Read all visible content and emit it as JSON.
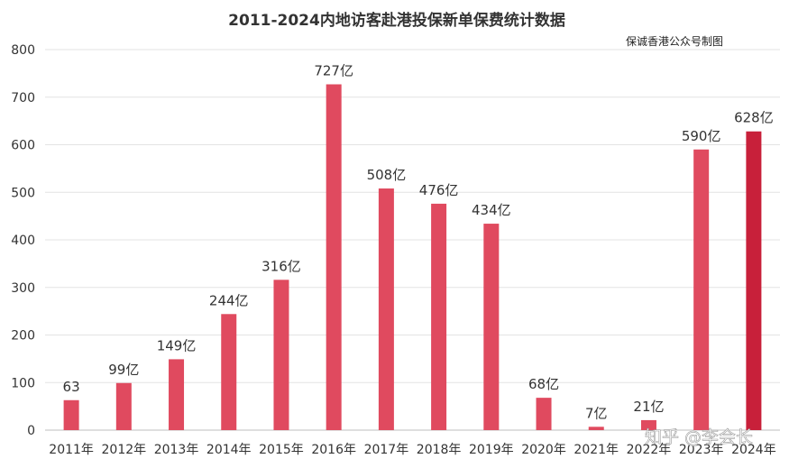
{
  "watermark": "知乎 @李会长",
  "chart_data": {
    "type": "bar",
    "title": "2011-2024内地访客赴港投保新单保费统计数据",
    "source_note": "保诚香港公众号制图",
    "xlabel": "",
    "ylabel": "",
    "ylim": [
      0,
      800
    ],
    "yticks": [
      0,
      100,
      200,
      300,
      400,
      500,
      600,
      700,
      800
    ],
    "grid": true,
    "categories": [
      "2011年",
      "2012年",
      "2013年",
      "2014年",
      "2015年",
      "2016年",
      "2017年",
      "2018年",
      "2019年",
      "2020年",
      "2021年",
      "2022年",
      "2023年",
      "2024年"
    ],
    "values": [
      63,
      99,
      149,
      244,
      316,
      727,
      508,
      476,
      434,
      68,
      7,
      21,
      590,
      628
    ],
    "data_labels": [
      "63",
      "99亿",
      "149亿",
      "244亿",
      "316亿",
      "727亿",
      "508亿",
      "476亿",
      "434亿",
      "68亿",
      "7亿",
      "21亿",
      "590亿",
      "628亿"
    ],
    "bar_color": "#e04a5f",
    "highlight_color": "#c8203a",
    "highlight_index": 13
  }
}
